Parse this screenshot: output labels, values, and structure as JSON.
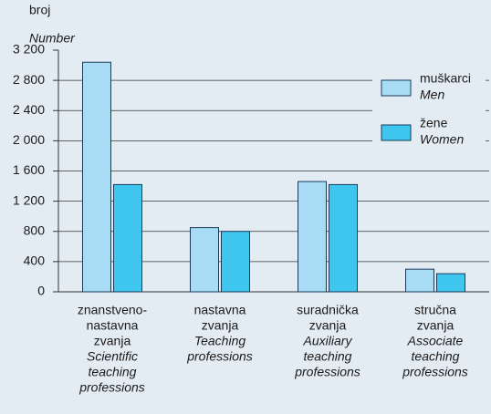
{
  "chart_data": {
    "type": "bar",
    "y_label": "broj",
    "y_label_en": "Number",
    "categories": [
      [
        "znanstveno-",
        "nastavna",
        "zvanja"
      ],
      [
        "nastavna",
        "zvanja"
      ],
      [
        "suradnička",
        "zvanja"
      ],
      [
        "stručna",
        "zvanja"
      ]
    ],
    "categories_en": [
      [
        "Scientific",
        "teaching",
        "professions"
      ],
      [
        "Teaching",
        "professions"
      ],
      [
        "Auxiliary",
        "teaching",
        "professions"
      ],
      [
        "Associate",
        "teaching",
        "professions"
      ]
    ],
    "series": [
      {
        "name": "muškarci",
        "name_en": "Men",
        "color": "#a8dcf4",
        "values": [
          3040,
          850,
          1460,
          300
        ]
      },
      {
        "name": "žene",
        "name_en": "Women",
        "color": "#3ec6ee",
        "values": [
          1420,
          800,
          1420,
          240
        ]
      }
    ],
    "ylim": [
      0,
      3200
    ],
    "yticks": [
      0,
      400,
      800,
      {
        "value": 1200,
        "label": "1 200"
      },
      {
        "value": 1600,
        "label": "1 600"
      },
      {
        "value": 2000,
        "label": "2 000"
      },
      {
        "value": 2400,
        "label": "2 400"
      },
      {
        "value": 2800,
        "label": "2 800"
      },
      {
        "value": 3200,
        "label": "3 200"
      }
    ],
    "grid": true,
    "legend": "upper right"
  }
}
